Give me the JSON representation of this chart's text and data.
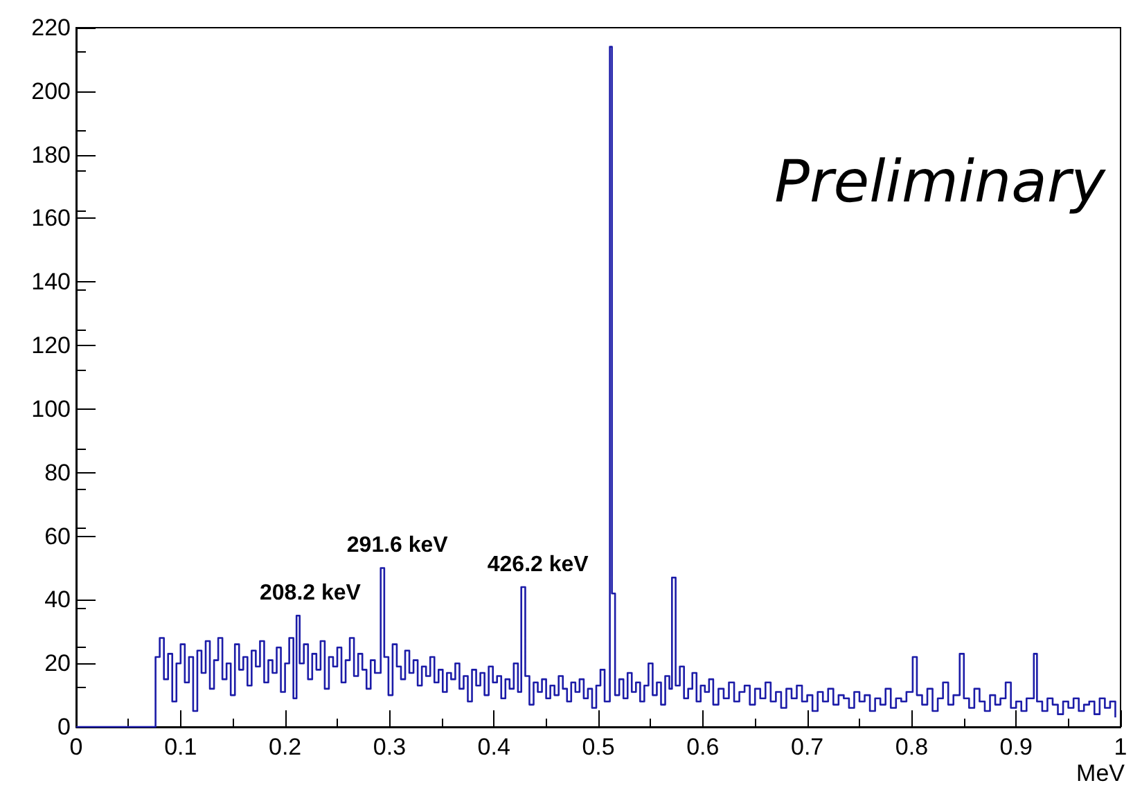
{
  "chart_data": {
    "type": "step",
    "xlabel": "MeV",
    "color": "#1c1ca8",
    "marker": "none",
    "line_style": "solid",
    "grid": false,
    "xlim": [
      0,
      1
    ],
    "xticks": [
      0,
      0.1,
      0.2,
      0.3,
      0.4,
      0.5,
      0.6,
      0.7,
      0.8,
      0.9,
      1
    ],
    "ylim": [
      0,
      220
    ],
    "yticks": [
      0,
      20,
      40,
      60,
      80,
      100,
      120,
      140,
      160,
      180,
      200,
      220
    ],
    "x": [
      0,
      0.076,
      0.08,
      0.084,
      0.088,
      0.092,
      0.096,
      0.1,
      0.104,
      0.108,
      0.112,
      0.116,
      0.12,
      0.124,
      0.128,
      0.132,
      0.136,
      0.14,
      0.144,
      0.148,
      0.152,
      0.156,
      0.16,
      0.164,
      0.168,
      0.172,
      0.176,
      0.18,
      0.184,
      0.188,
      0.192,
      0.196,
      0.2,
      0.204,
      0.208,
      0.211,
      0.214,
      0.218,
      0.222,
      0.226,
      0.23,
      0.234,
      0.238,
      0.242,
      0.246,
      0.25,
      0.254,
      0.258,
      0.262,
      0.266,
      0.27,
      0.274,
      0.278,
      0.282,
      0.286,
      0.2916,
      0.295,
      0.299,
      0.303,
      0.307,
      0.311,
      0.315,
      0.319,
      0.323,
      0.327,
      0.331,
      0.335,
      0.339,
      0.343,
      0.347,
      0.351,
      0.355,
      0.359,
      0.363,
      0.367,
      0.371,
      0.375,
      0.379,
      0.383,
      0.387,
      0.391,
      0.395,
      0.399,
      0.403,
      0.407,
      0.411,
      0.415,
      0.419,
      0.423,
      0.4262,
      0.43,
      0.434,
      0.438,
      0.442,
      0.446,
      0.45,
      0.454,
      0.458,
      0.462,
      0.466,
      0.47,
      0.474,
      0.478,
      0.482,
      0.486,
      0.49,
      0.494,
      0.498,
      0.502,
      0.506,
      0.511,
      0.513,
      0.516,
      0.52,
      0.524,
      0.528,
      0.532,
      0.536,
      0.54,
      0.544,
      0.548,
      0.552,
      0.556,
      0.56,
      0.564,
      0.568,
      0.5705,
      0.574,
      0.578,
      0.582,
      0.586,
      0.59,
      0.594,
      0.598,
      0.602,
      0.606,
      0.61,
      0.615,
      0.62,
      0.625,
      0.63,
      0.635,
      0.64,
      0.645,
      0.65,
      0.655,
      0.66,
      0.665,
      0.67,
      0.675,
      0.68,
      0.685,
      0.69,
      0.695,
      0.7,
      0.705,
      0.71,
      0.715,
      0.72,
      0.725,
      0.73,
      0.735,
      0.74,
      0.745,
      0.75,
      0.755,
      0.76,
      0.765,
      0.77,
      0.775,
      0.78,
      0.785,
      0.79,
      0.795,
      0.801,
      0.805,
      0.81,
      0.815,
      0.82,
      0.825,
      0.83,
      0.835,
      0.84,
      0.846,
      0.85,
      0.855,
      0.86,
      0.865,
      0.87,
      0.875,
      0.88,
      0.885,
      0.89,
      0.895,
      0.9,
      0.905,
      0.91,
      0.917,
      0.92,
      0.925,
      0.93,
      0.935,
      0.94,
      0.945,
      0.95,
      0.955,
      0.96,
      0.965,
      0.97,
      0.975,
      0.98,
      0.985,
      0.99,
      0.995
    ],
    "values": [
      0,
      22,
      28,
      15,
      23,
      8,
      20,
      26,
      14,
      22,
      5,
      24,
      17,
      27,
      12,
      21,
      28,
      15,
      20,
      10,
      26,
      18,
      22,
      13,
      24,
      19,
      27,
      14,
      21,
      17,
      25,
      11,
      20,
      28,
      9,
      35,
      20,
      26,
      15,
      23,
      18,
      27,
      12,
      22,
      19,
      25,
      14,
      21,
      28,
      16,
      23,
      18,
      12,
      21,
      17,
      50,
      22,
      10,
      26,
      19,
      15,
      24,
      17,
      21,
      13,
      19,
      16,
      22,
      14,
      18,
      11,
      17,
      15,
      20,
      12,
      16,
      8,
      18,
      13,
      17,
      10,
      19,
      14,
      16,
      9,
      15,
      12,
      20,
      11,
      44,
      16,
      7,
      14,
      11,
      15,
      9,
      13,
      10,
      16,
      12,
      8,
      14,
      11,
      15,
      9,
      12,
      6,
      13,
      18,
      8,
      214,
      42,
      10,
      15,
      9,
      17,
      11,
      14,
      8,
      13,
      20,
      10,
      14,
      7,
      16,
      12,
      47,
      13,
      19,
      9,
      12,
      17,
      8,
      13,
      11,
      15,
      7,
      12,
      9,
      14,
      8,
      11,
      13,
      7,
      12,
      9,
      14,
      8,
      11,
      6,
      12,
      9,
      13,
      8,
      10,
      5,
      11,
      8,
      12,
      7,
      10,
      9,
      6,
      11,
      8,
      10,
      5,
      9,
      7,
      12,
      6,
      9,
      8,
      11,
      22,
      10,
      7,
      12,
      5,
      9,
      14,
      7,
      10,
      23,
      9,
      6,
      12,
      8,
      5,
      10,
      7,
      9,
      14,
      6,
      8,
      5,
      9,
      23,
      8,
      5,
      9,
      7,
      4,
      8,
      6,
      9,
      5,
      7,
      8,
      4,
      9,
      6,
      8,
      3
    ],
    "annotations": [
      {
        "text": "208.2 keV",
        "x": 0.2082,
        "y": 35
      },
      {
        "text": "291.6 keV",
        "x": 0.2916,
        "y": 50
      },
      {
        "text": "426.2 keV",
        "x": 0.4262,
        "y": 44
      },
      "Preliminary"
    ]
  }
}
